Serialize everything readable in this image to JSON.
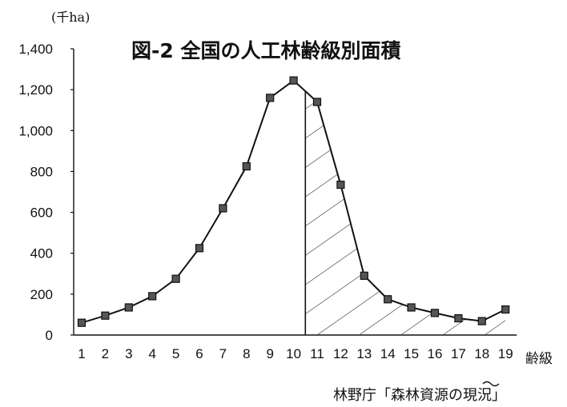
{
  "chart_data": {
    "type": "line",
    "title": "図-2 全国の人工林齢級別面積",
    "unit_label": "(千ha)",
    "xlabel": "齢級",
    "ylabel": "",
    "source": "林野庁「森林資源の現況」",
    "categories": [
      "1",
      "2",
      "3",
      "4",
      "5",
      "6",
      "7",
      "8",
      "9",
      "10",
      "11",
      "12",
      "13",
      "14",
      "15",
      "16",
      "17",
      "18",
      "19"
    ],
    "series": [
      {
        "values": [
          60,
          95,
          135,
          190,
          275,
          425,
          620,
          825,
          1160,
          1245,
          1140,
          735,
          290,
          175,
          135,
          108,
          82,
          68,
          125
        ]
      }
    ],
    "ylim": [
      0,
      1400
    ],
    "yticks": [
      "0",
      "200",
      "400",
      "600",
      "800",
      "1,000",
      "1,200",
      "1,400"
    ],
    "hatched_range": [
      "10",
      "19"
    ],
    "grid": false,
    "legend": "none"
  }
}
